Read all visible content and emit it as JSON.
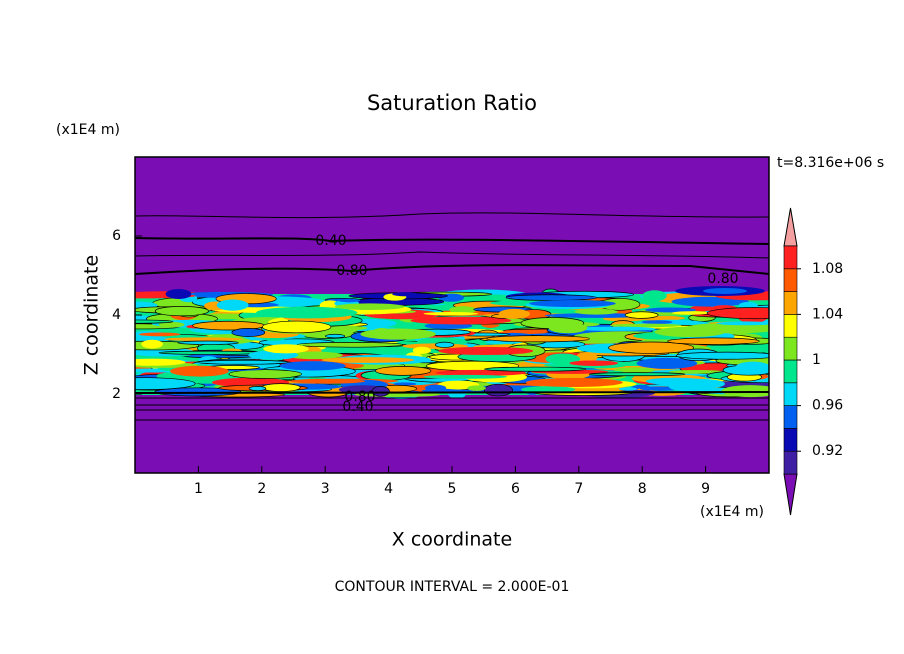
{
  "chart_data": {
    "type": "contour",
    "title": "Saturation Ratio",
    "time_label": "t=8.316e+06 s",
    "xlabel": "X coordinate",
    "ylabel": "Z coordinate",
    "xunit": "(x1E4 m)",
    "yunit": "(x1E4 m)",
    "footer": "CONTOUR INTERVAL = 2.000E-01",
    "xlim": [
      0,
      10
    ],
    "ylim": [
      0,
      8
    ],
    "xticks": [
      1,
      2,
      3,
      4,
      5,
      6,
      7,
      8,
      9
    ],
    "yticks": [
      2,
      4,
      6
    ],
    "colorbar": {
      "levels": [
        0.9,
        0.92,
        0.94,
        0.96,
        0.98,
        1,
        1.02,
        1.04,
        1.06,
        1.08,
        1.1
      ],
      "colors": [
        "#7b0db4",
        "#3f1fa4",
        "#0a0ab4",
        "#0060f0",
        "#00d8f8",
        "#00e68c",
        "#7ce61e",
        "#ffff00",
        "#ffa500",
        "#ff5a00",
        "#ff2020",
        "#f4a0a0"
      ],
      "ticks": [
        0.92,
        0.96,
        1,
        1.04,
        1.08
      ]
    },
    "contour_labels": [
      "0.40",
      "0.80",
      "0.80",
      "0.80",
      "0.40"
    ]
  }
}
